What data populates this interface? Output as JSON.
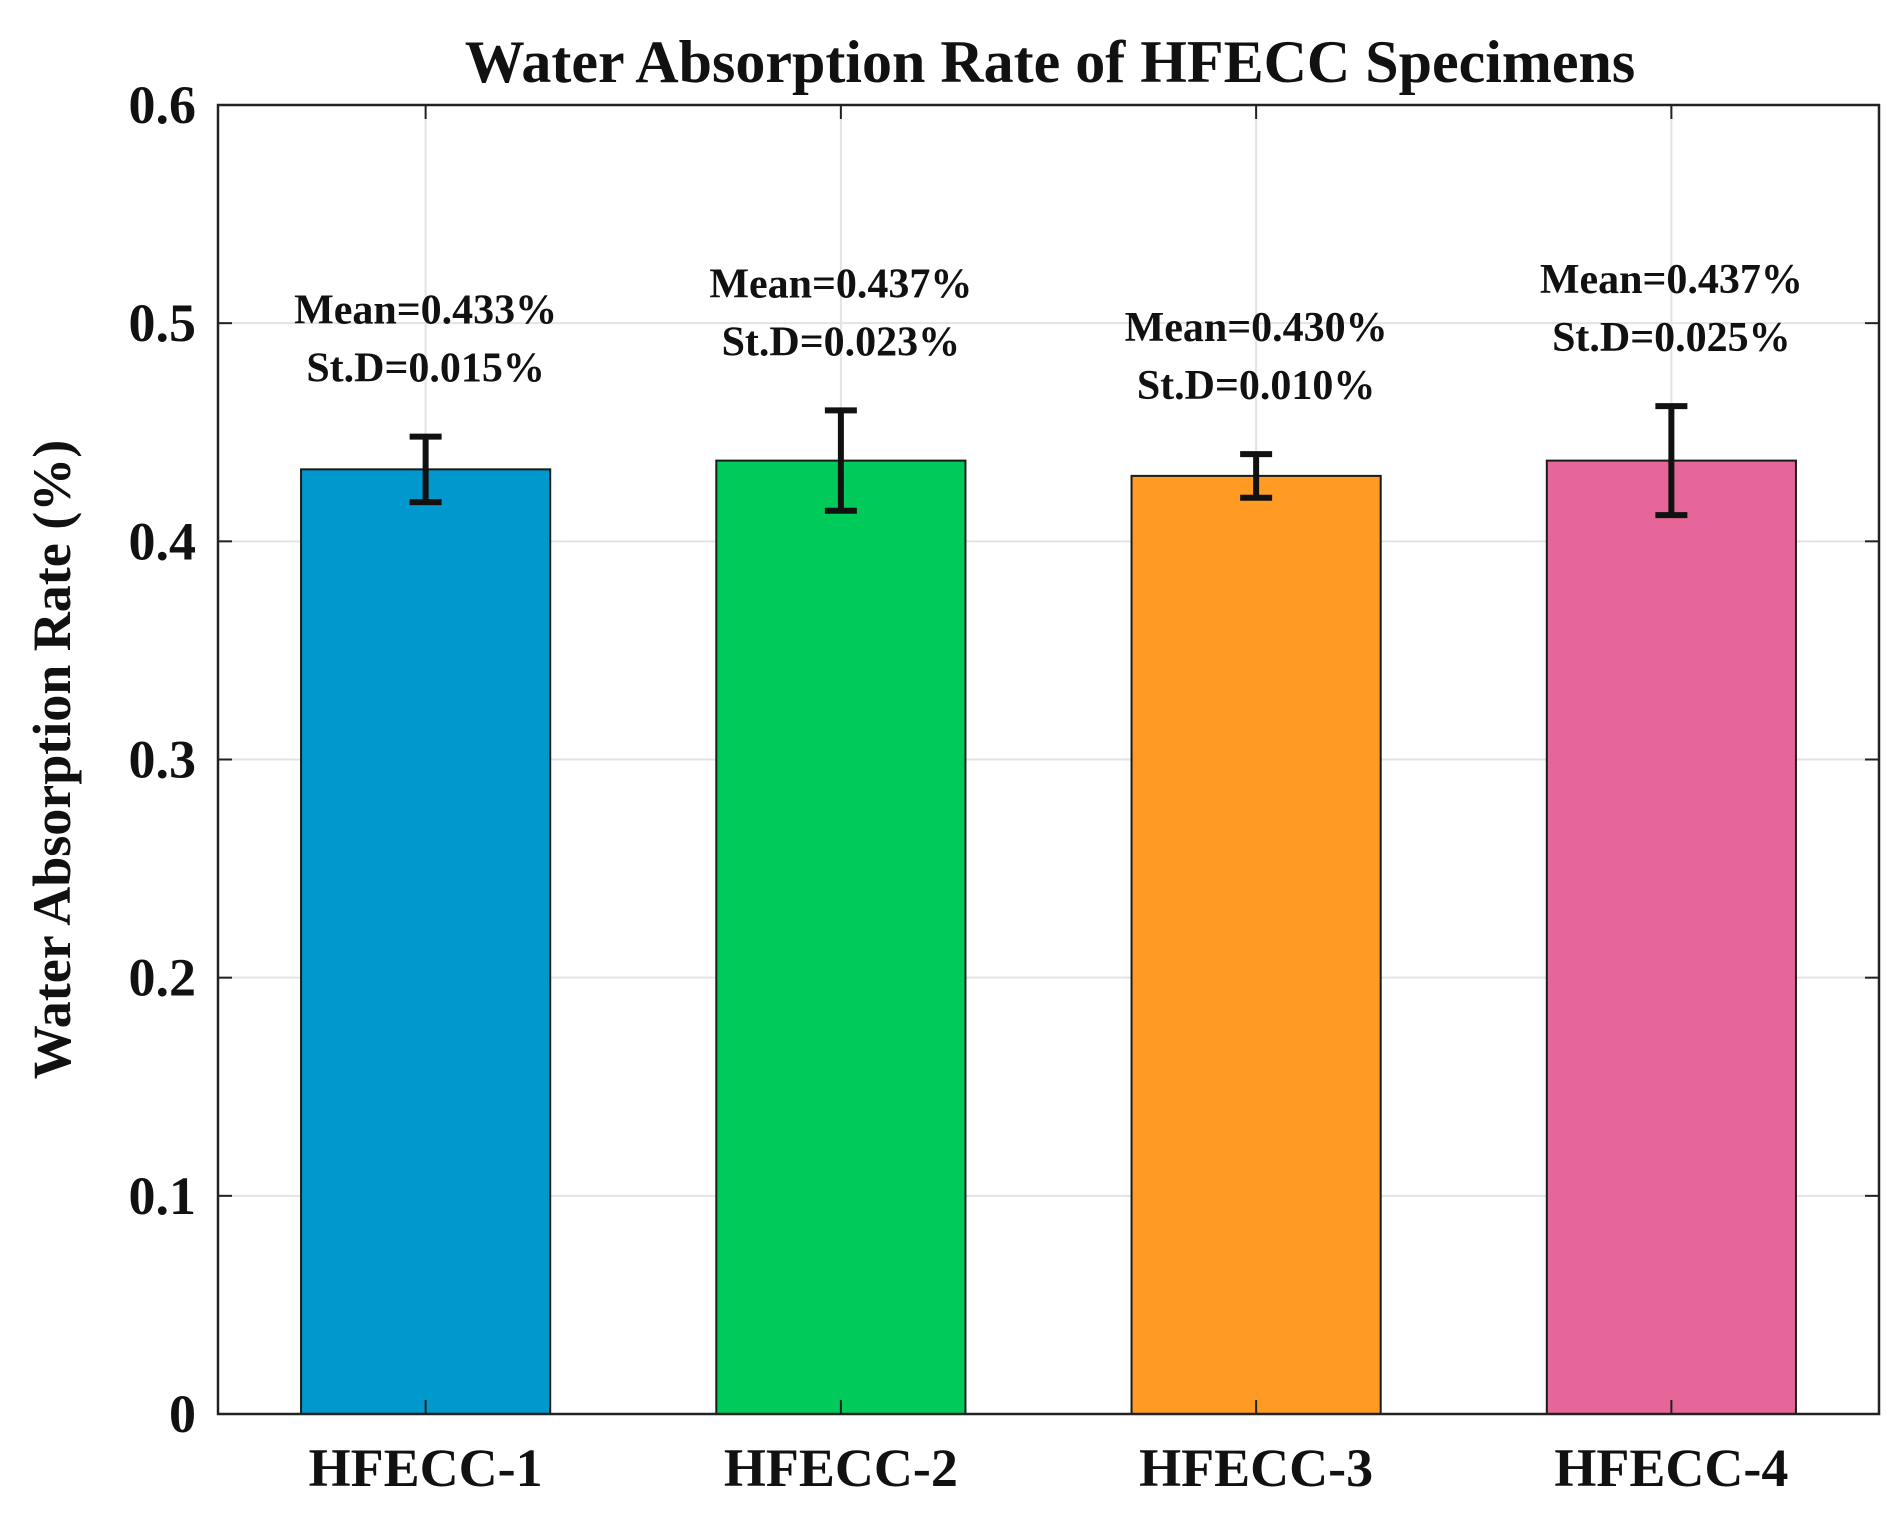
{
  "chart_data": {
    "type": "bar",
    "title": "Water Absorption Rate of HFECC Specimens",
    "xlabel": "",
    "ylabel": "Water Absorption Rate (%)",
    "ylim": [
      0,
      0.6
    ],
    "yticks": [
      "0",
      "0.1",
      "0.2",
      "0.3",
      "0.4",
      "0.5",
      "0.6"
    ],
    "grid": true,
    "categories": [
      "HFECC-1",
      "HFECC-2",
      "HFECC-3",
      "HFECC-4"
    ],
    "values": [
      0.433,
      0.437,
      0.43,
      0.437
    ],
    "errors": [
      0.015,
      0.023,
      0.01,
      0.025
    ],
    "colors": [
      "#0098cd",
      "#00cb5a",
      "#ff9a22",
      "#e6669a"
    ],
    "annotations": [
      {
        "mean": "Mean=0.433%",
        "std": "St.D=0.015%"
      },
      {
        "mean": "Mean=0.437%",
        "std": "St.D=0.023%"
      },
      {
        "mean": "Mean=0.430%",
        "std": "St.D=0.010%"
      },
      {
        "mean": "Mean=0.437%",
        "std": "St.D=0.025%"
      }
    ]
  }
}
